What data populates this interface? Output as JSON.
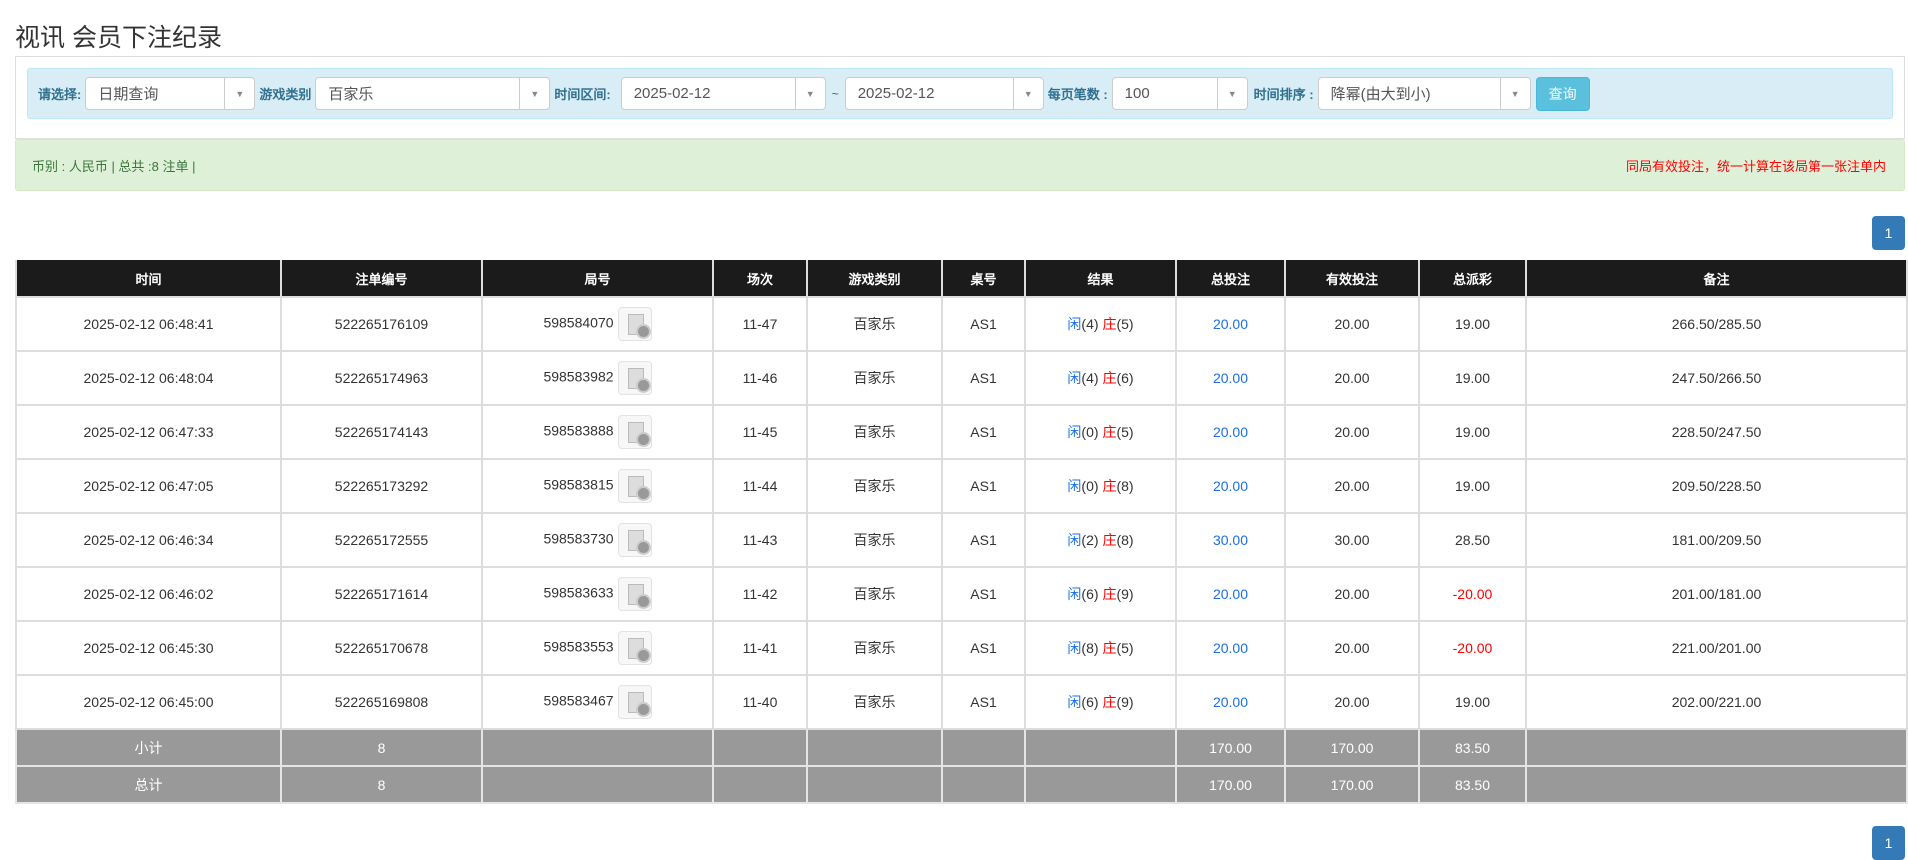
{
  "title": "视讯 会员下注纪录",
  "filter": {
    "select_label": "请选择:",
    "select_value": "日期查询",
    "game_label": "游戏类别",
    "game_value": "百家乐",
    "range_label": "时间区间:",
    "date_from": "2025-02-12",
    "tilde": "~",
    "date_to": "2025-02-12",
    "per_page_label": "每页笔数 :",
    "per_page_value": "100",
    "sort_label": "时间排序 :",
    "sort_value": "降幂(由大到小)",
    "query_label": "查询"
  },
  "alert": {
    "left": "币别 : 人民币 | 总共 :8 注单 |",
    "right": "同局有效投注，统一计算在该局第一张注单内"
  },
  "pagination": {
    "page": "1"
  },
  "colors": {
    "header_bg": "#1b1b1b",
    "summary_bg": "#999999",
    "player": "#1a6fe6",
    "banker": "#ff0000",
    "alert_bg": "#dff0d8",
    "filter_bg": "#d9edf7",
    "page_btn": "#337ab7",
    "query_btn": "#5bc0de"
  },
  "table": {
    "headers": [
      "时间",
      "注单编号",
      "局号",
      "场次",
      "游戏类别",
      "桌号",
      "结果",
      "总投注",
      "有效投注",
      "总派彩",
      "备注"
    ],
    "rows": [
      {
        "time": "2025-02-12 06:48:41",
        "bet_id": "522265176109",
        "round": "598584070",
        "shoe": "11-47",
        "game": "百家乐",
        "table": "AS1",
        "p": "闲",
        "pv": "(4)",
        "b": "庄",
        "bv": "(5)",
        "total": "20.00",
        "valid": "20.00",
        "payout": "19.00",
        "payout_neg": false,
        "note": "266.50/285.50"
      },
      {
        "time": "2025-02-12 06:48:04",
        "bet_id": "522265174963",
        "round": "598583982",
        "shoe": "11-46",
        "game": "百家乐",
        "table": "AS1",
        "p": "闲",
        "pv": "(4)",
        "b": "庄",
        "bv": "(6)",
        "total": "20.00",
        "valid": "20.00",
        "payout": "19.00",
        "payout_neg": false,
        "note": "247.50/266.50"
      },
      {
        "time": "2025-02-12 06:47:33",
        "bet_id": "522265174143",
        "round": "598583888",
        "shoe": "11-45",
        "game": "百家乐",
        "table": "AS1",
        "p": "闲",
        "pv": "(0)",
        "b": "庄",
        "bv": "(5)",
        "total": "20.00",
        "valid": "20.00",
        "payout": "19.00",
        "payout_neg": false,
        "note": "228.50/247.50"
      },
      {
        "time": "2025-02-12 06:47:05",
        "bet_id": "522265173292",
        "round": "598583815",
        "shoe": "11-44",
        "game": "百家乐",
        "table": "AS1",
        "p": "闲",
        "pv": "(0)",
        "b": "庄",
        "bv": "(8)",
        "total": "20.00",
        "valid": "20.00",
        "payout": "19.00",
        "payout_neg": false,
        "note": "209.50/228.50"
      },
      {
        "time": "2025-02-12 06:46:34",
        "bet_id": "522265172555",
        "round": "598583730",
        "shoe": "11-43",
        "game": "百家乐",
        "table": "AS1",
        "p": "闲",
        "pv": "(2)",
        "b": "庄",
        "bv": "(8)",
        "total": "30.00",
        "valid": "30.00",
        "payout": "28.50",
        "payout_neg": false,
        "note": "181.00/209.50"
      },
      {
        "time": "2025-02-12 06:46:02",
        "bet_id": "522265171614",
        "round": "598583633",
        "shoe": "11-42",
        "game": "百家乐",
        "table": "AS1",
        "p": "闲",
        "pv": "(6)",
        "b": "庄",
        "bv": "(9)",
        "total": "20.00",
        "valid": "20.00",
        "payout": "-20.00",
        "payout_neg": true,
        "note": "201.00/181.00"
      },
      {
        "time": "2025-02-12 06:45:30",
        "bet_id": "522265170678",
        "round": "598583553",
        "shoe": "11-41",
        "game": "百家乐",
        "table": "AS1",
        "p": "闲",
        "pv": "(8)",
        "b": "庄",
        "bv": "(5)",
        "total": "20.00",
        "valid": "20.00",
        "payout": "-20.00",
        "payout_neg": true,
        "note": "221.00/201.00"
      },
      {
        "time": "2025-02-12 06:45:00",
        "bet_id": "522265169808",
        "round": "598583467",
        "shoe": "11-40",
        "game": "百家乐",
        "table": "AS1",
        "p": "闲",
        "pv": "(6)",
        "b": "庄",
        "bv": "(9)",
        "total": "20.00",
        "valid": "20.00",
        "payout": "19.00",
        "payout_neg": false,
        "note": "202.00/221.00"
      }
    ],
    "summary": [
      {
        "label": "小计",
        "count": "8",
        "total": "170.00",
        "valid": "170.00",
        "payout": "83.50"
      },
      {
        "label": "总计",
        "count": "8",
        "total": "170.00",
        "valid": "170.00",
        "payout": "83.50"
      }
    ]
  }
}
